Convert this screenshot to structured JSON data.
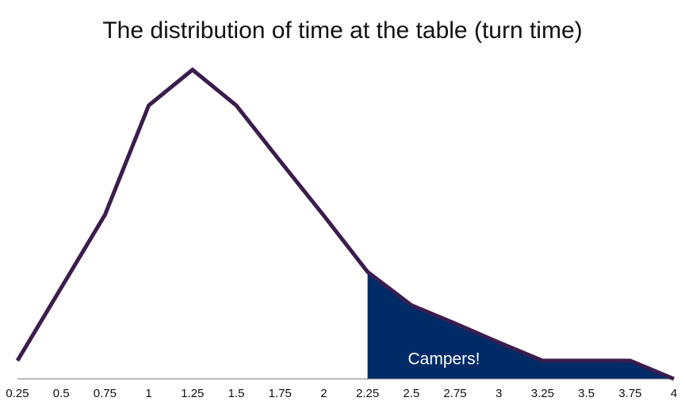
{
  "chart_data": {
    "type": "line",
    "title": "The distribution of time at the table (turn time)",
    "x": [
      0.25,
      0.5,
      0.75,
      1,
      1.25,
      1.5,
      1.75,
      2,
      2.25,
      2.5,
      2.75,
      3,
      3.25,
      3.5,
      3.75,
      4
    ],
    "series": [
      {
        "color": "#3a1d4e",
        "values": [
          23,
          115,
          207,
          345,
          390,
          345,
          275,
          206,
          135,
          93,
          70,
          46,
          23,
          23,
          23,
          0
        ]
      }
    ],
    "xlim": [
      0.25,
      4
    ],
    "xticks": [
      0.25,
      0.5,
      0.75,
      1,
      1.25,
      1.5,
      1.75,
      2,
      2.25,
      2.5,
      2.75,
      3,
      3.25,
      3.5,
      3.75,
      4
    ],
    "ylim": [
      0,
      400
    ],
    "shaded_region": {
      "xlim": [
        2.25,
        4
      ],
      "color": "#002b66",
      "label": "Campers!"
    }
  }
}
